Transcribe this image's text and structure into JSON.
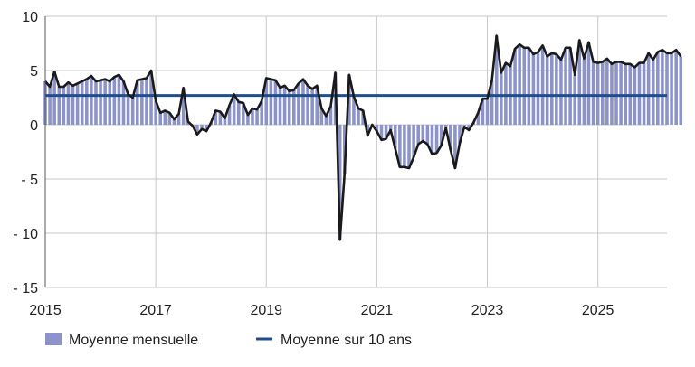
{
  "chart_data": {
    "type": "bar",
    "title": "",
    "xlabel": "",
    "ylabel": "",
    "ylim": [
      -15,
      10
    ],
    "xlim": [
      2015.0,
      2026.25
    ],
    "yticks": [
      {
        "value": 10,
        "label": "10"
      },
      {
        "value": 5,
        "label": "5"
      },
      {
        "value": 0,
        "label": "0"
      },
      {
        "value": -5,
        "label": "- 5"
      },
      {
        "value": -10,
        "label": "- 10"
      },
      {
        "value": -15,
        "label": "- 15"
      }
    ],
    "xticks": [
      {
        "value": 2015,
        "label": "2015"
      },
      {
        "value": 2017,
        "label": "2017"
      },
      {
        "value": 2019,
        "label": "2019"
      },
      {
        "value": 2021,
        "label": "2021"
      },
      {
        "value": 2023,
        "label": "2023"
      },
      {
        "value": 2025,
        "label": "2025"
      }
    ],
    "grid": true,
    "colors": {
      "bars": "#8c93c9",
      "line": "#1a1a1a",
      "average": "#1f4e8c",
      "grid": "#c8c8c8"
    },
    "series": [
      {
        "name": "Moyenne mensuelle",
        "kind": "bar",
        "start": 2015.0,
        "step_months": 1,
        "values": [
          4.0,
          3.5,
          4.9,
          3.5,
          3.5,
          3.9,
          3.6,
          3.8,
          4.0,
          4.2,
          4.5,
          4.0,
          4.1,
          4.2,
          4.0,
          4.4,
          4.6,
          4.0,
          2.8,
          2.5,
          4.1,
          4.2,
          4.3,
          5.0,
          2.2,
          1.1,
          1.3,
          1.1,
          0.5,
          1.0,
          3.4,
          0.3,
          -0.1,
          -0.9,
          -0.4,
          -0.6,
          0.2,
          1.3,
          1.2,
          0.6,
          1.8,
          2.8,
          2.1,
          2.0,
          0.9,
          1.5,
          1.4,
          2.2,
          4.3,
          4.2,
          4.1,
          3.4,
          3.6,
          3.1,
          3.2,
          3.8,
          4.2,
          3.6,
          3.3,
          3.6,
          1.5,
          0.8,
          1.7,
          4.8,
          -10.6,
          -4.5,
          4.6,
          2.6,
          1.5,
          1.3,
          -1.0,
          0.0,
          -0.6,
          -1.4,
          -1.3,
          -0.5,
          -2.2,
          -3.9,
          -3.9,
          -4.0,
          -3.0,
          -1.8,
          -1.5,
          -1.8,
          -2.7,
          -2.6,
          -1.9,
          -0.3,
          -2.3,
          -4.0,
          -1.7,
          -0.2,
          -0.5,
          0.2,
          1.1,
          2.4,
          2.4,
          4.1,
          8.2,
          4.8,
          5.7,
          5.4,
          7.0,
          7.4,
          7.1,
          7.1,
          6.5,
          6.7,
          7.3,
          6.3,
          6.6,
          6.5,
          6.0,
          7.1,
          7.1,
          4.6,
          7.8,
          6.1,
          7.6,
          5.8,
          5.7,
          5.8,
          6.1,
          5.6,
          5.8,
          5.8,
          5.6,
          5.6,
          5.3,
          5.7,
          5.7,
          6.6,
          6.0,
          6.7,
          6.9,
          6.6,
          6.6,
          6.9,
          6.3
        ]
      },
      {
        "name": "Moyenne sur 10 ans",
        "kind": "hline",
        "value": 2.7
      }
    ],
    "legend": {
      "placement": "bottom-left",
      "items": [
        {
          "label": "Moyenne mensuelle",
          "swatch": "box"
        },
        {
          "label": "Moyenne sur 10 ans",
          "swatch": "line"
        }
      ]
    }
  }
}
